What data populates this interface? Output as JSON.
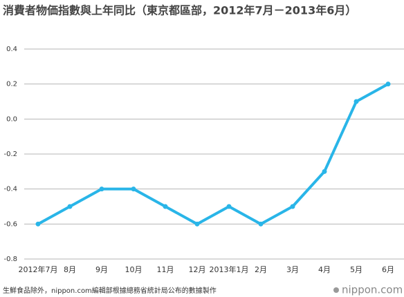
{
  "chart_data": {
    "type": "line",
    "title": "消費者物価指數與上年同比（東京都區部，2012年7月－2013年6月）",
    "categories": [
      "2012年7月",
      "8月",
      "9月",
      "10月",
      "11月",
      "12月",
      "2013年1月",
      "2月",
      "3月",
      "4月",
      "5月",
      "6月"
    ],
    "values": [
      -0.6,
      -0.5,
      -0.4,
      -0.4,
      -0.5,
      -0.6,
      -0.5,
      -0.6,
      -0.5,
      -0.3,
      0.1,
      0.2
    ],
    "color": "#29b5e8",
    "ylim": [
      -0.8,
      0.4
    ],
    "yticks": [
      0.4,
      0.2,
      {
        "value": 0,
        "label": "0.0"
      },
      -0.2,
      -0.4,
      -0.6,
      -0.8
    ],
    "grid": true,
    "note": "生鮮食品除外，nippon.com編輯部根據總務省統計局公布的數據製作",
    "source_logo": "nippon.com"
  }
}
